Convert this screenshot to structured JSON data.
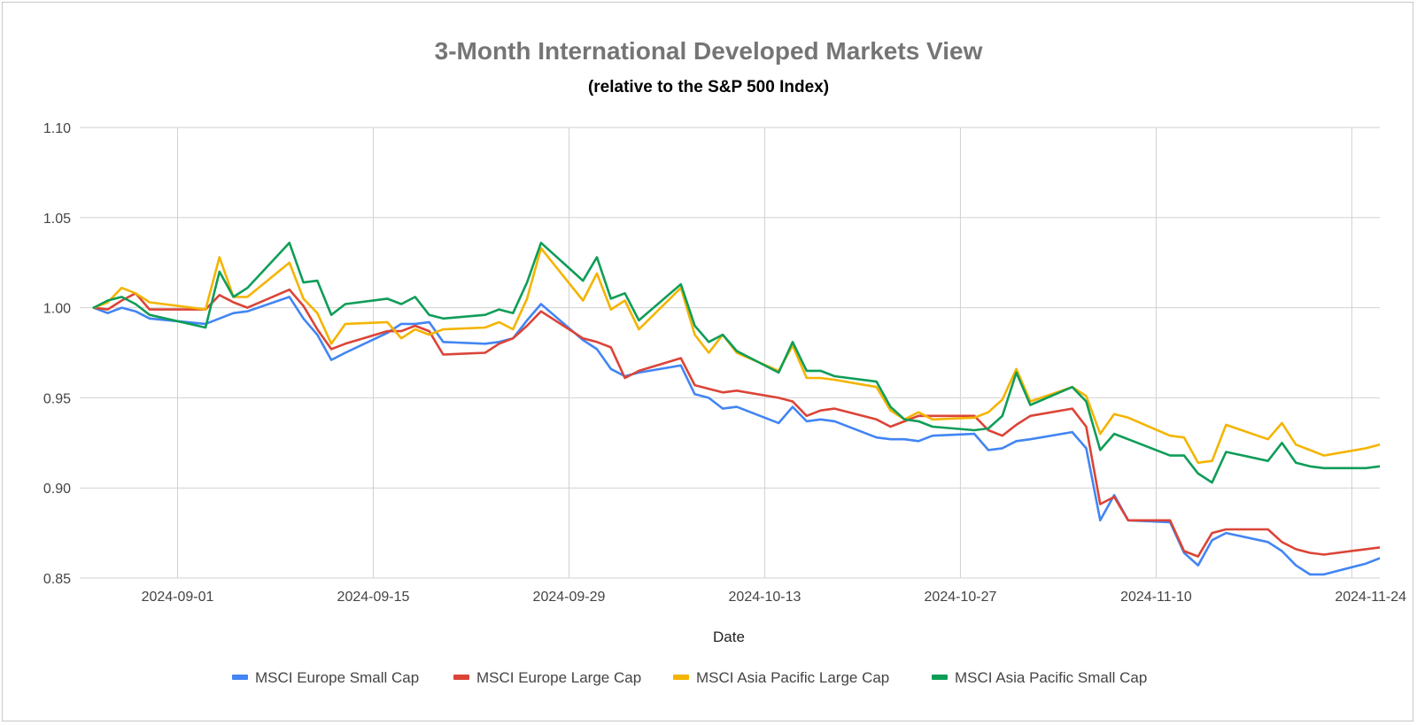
{
  "chart_data": {
    "type": "line",
    "title": "3-Month International Developed Markets View",
    "subtitle": "(relative to the S&P 500 Index)",
    "xlabel": "Date",
    "ylabel": "",
    "xlim": [
      "2024-08-25",
      "2024-11-26"
    ],
    "ylim": [
      0.85,
      1.1
    ],
    "yticks": [
      "0.85",
      "0.90",
      "0.95",
      "1.00",
      "1.05",
      "1.10"
    ],
    "xticks": [
      "2024-09-01",
      "2024-09-15",
      "2024-09-29",
      "2024-10-13",
      "2024-10-27",
      "2024-11-10",
      "2024-11-24"
    ],
    "grid": true,
    "legend_position": "bottom",
    "series": [
      {
        "name": "MSCI Europe Small Cap",
        "color": "#4285f4",
        "x": [
          "2024-08-26",
          "2024-08-27",
          "2024-08-28",
          "2024-08-29",
          "2024-08-30",
          "2024-09-03",
          "2024-09-04",
          "2024-09-05",
          "2024-09-06",
          "2024-09-09",
          "2024-09-10",
          "2024-09-11",
          "2024-09-12",
          "2024-09-13",
          "2024-09-16",
          "2024-09-17",
          "2024-09-18",
          "2024-09-19",
          "2024-09-20",
          "2024-09-23",
          "2024-09-24",
          "2024-09-25",
          "2024-09-26",
          "2024-09-27",
          "2024-09-30",
          "2024-10-01",
          "2024-10-02",
          "2024-10-03",
          "2024-10-04",
          "2024-10-07",
          "2024-10-08",
          "2024-10-09",
          "2024-10-10",
          "2024-10-11",
          "2024-10-14",
          "2024-10-15",
          "2024-10-16",
          "2024-10-17",
          "2024-10-18",
          "2024-10-21",
          "2024-10-22",
          "2024-10-23",
          "2024-10-24",
          "2024-10-25",
          "2024-10-28",
          "2024-10-29",
          "2024-10-30",
          "2024-10-31",
          "2024-11-01",
          "2024-11-04",
          "2024-11-05",
          "2024-11-06",
          "2024-11-07",
          "2024-11-08",
          "2024-11-11",
          "2024-11-12",
          "2024-11-13",
          "2024-11-14",
          "2024-11-15",
          "2024-11-18",
          "2024-11-19",
          "2024-11-20",
          "2024-11-21",
          "2024-11-22",
          "2024-11-25",
          "2024-11-26"
        ],
        "y": [
          1.0,
          0.997,
          1.0,
          0.998,
          0.994,
          0.991,
          0.994,
          0.997,
          0.998,
          1.006,
          0.994,
          0.985,
          0.971,
          0.975,
          0.986,
          0.991,
          0.991,
          0.992,
          0.981,
          0.98,
          0.981,
          0.983,
          0.993,
          1.002,
          0.982,
          0.977,
          0.966,
          0.962,
          0.964,
          0.968,
          0.952,
          0.95,
          0.944,
          0.945,
          0.936,
          0.945,
          0.937,
          0.938,
          0.937,
          0.928,
          0.927,
          0.927,
          0.926,
          0.929,
          0.93,
          0.921,
          0.922,
          0.926,
          0.927,
          0.931,
          0.922,
          0.882,
          0.896,
          0.882,
          0.881,
          0.864,
          0.857,
          0.871,
          0.875,
          0.87,
          0.865,
          0.857,
          0.852,
          0.852,
          0.858,
          0.861
        ]
      },
      {
        "name": "MSCI Europe Large Cap",
        "color": "#db4437",
        "x": [
          "2024-08-26",
          "2024-08-27",
          "2024-08-28",
          "2024-08-29",
          "2024-08-30",
          "2024-09-03",
          "2024-09-04",
          "2024-09-05",
          "2024-09-06",
          "2024-09-09",
          "2024-09-10",
          "2024-09-11",
          "2024-09-12",
          "2024-09-13",
          "2024-09-16",
          "2024-09-17",
          "2024-09-18",
          "2024-09-19",
          "2024-09-20",
          "2024-09-23",
          "2024-09-24",
          "2024-09-25",
          "2024-09-26",
          "2024-09-27",
          "2024-09-30",
          "2024-10-01",
          "2024-10-02",
          "2024-10-03",
          "2024-10-04",
          "2024-10-07",
          "2024-10-08",
          "2024-10-09",
          "2024-10-10",
          "2024-10-11",
          "2024-10-14",
          "2024-10-15",
          "2024-10-16",
          "2024-10-17",
          "2024-10-18",
          "2024-10-21",
          "2024-10-22",
          "2024-10-23",
          "2024-10-24",
          "2024-10-25",
          "2024-10-28",
          "2024-10-29",
          "2024-10-30",
          "2024-10-31",
          "2024-11-01",
          "2024-11-04",
          "2024-11-05",
          "2024-11-06",
          "2024-11-07",
          "2024-11-08",
          "2024-11-11",
          "2024-11-12",
          "2024-11-13",
          "2024-11-14",
          "2024-11-15",
          "2024-11-18",
          "2024-11-19",
          "2024-11-20",
          "2024-11-21",
          "2024-11-22",
          "2024-11-25",
          "2024-11-26"
        ],
        "y": [
          1.0,
          0.999,
          1.004,
          1.008,
          0.999,
          0.999,
          1.007,
          1.003,
          1.0,
          1.01,
          1.001,
          0.988,
          0.977,
          0.98,
          0.987,
          0.987,
          0.99,
          0.987,
          0.974,
          0.975,
          0.98,
          0.983,
          0.99,
          0.998,
          0.983,
          0.981,
          0.978,
          0.961,
          0.965,
          0.972,
          0.957,
          0.955,
          0.953,
          0.954,
          0.95,
          0.948,
          0.94,
          0.943,
          0.944,
          0.938,
          0.934,
          0.937,
          0.94,
          0.94,
          0.94,
          0.932,
          0.929,
          0.935,
          0.94,
          0.944,
          0.934,
          0.891,
          0.895,
          0.882,
          0.882,
          0.865,
          0.862,
          0.875,
          0.877,
          0.877,
          0.87,
          0.866,
          0.864,
          0.863,
          0.866,
          0.867
        ]
      },
      {
        "name": "MSCI Asia Pacific Large Cap",
        "color": "#f4b400",
        "x": [
          "2024-08-26",
          "2024-08-27",
          "2024-08-28",
          "2024-08-29",
          "2024-08-30",
          "2024-09-03",
          "2024-09-04",
          "2024-09-05",
          "2024-09-06",
          "2024-09-09",
          "2024-09-10",
          "2024-09-11",
          "2024-09-12",
          "2024-09-13",
          "2024-09-16",
          "2024-09-17",
          "2024-09-18",
          "2024-09-19",
          "2024-09-20",
          "2024-09-23",
          "2024-09-24",
          "2024-09-25",
          "2024-09-26",
          "2024-09-27",
          "2024-09-30",
          "2024-10-01",
          "2024-10-02",
          "2024-10-03",
          "2024-10-04",
          "2024-10-07",
          "2024-10-08",
          "2024-10-09",
          "2024-10-10",
          "2024-10-11",
          "2024-10-14",
          "2024-10-15",
          "2024-10-16",
          "2024-10-17",
          "2024-10-18",
          "2024-10-21",
          "2024-10-22",
          "2024-10-23",
          "2024-10-24",
          "2024-10-25",
          "2024-10-28",
          "2024-10-29",
          "2024-10-30",
          "2024-10-31",
          "2024-11-01",
          "2024-11-04",
          "2024-11-05",
          "2024-11-06",
          "2024-11-07",
          "2024-11-08",
          "2024-11-11",
          "2024-11-12",
          "2024-11-13",
          "2024-11-14",
          "2024-11-15",
          "2024-11-18",
          "2024-11-19",
          "2024-11-20",
          "2024-11-21",
          "2024-11-22",
          "2024-11-25",
          "2024-11-26"
        ],
        "y": [
          1.0,
          1.003,
          1.011,
          1.008,
          1.003,
          0.999,
          1.028,
          1.006,
          1.006,
          1.025,
          1.005,
          0.997,
          0.98,
          0.991,
          0.992,
          0.983,
          0.988,
          0.985,
          0.988,
          0.989,
          0.992,
          0.988,
          1.005,
          1.033,
          1.004,
          1.019,
          0.999,
          1.004,
          0.988,
          1.011,
          0.985,
          0.975,
          0.985,
          0.975,
          0.965,
          0.979,
          0.961,
          0.961,
          0.96,
          0.956,
          0.943,
          0.938,
          0.942,
          0.938,
          0.939,
          0.942,
          0.949,
          0.966,
          0.948,
          0.956,
          0.951,
          0.93,
          0.941,
          0.939,
          0.929,
          0.928,
          0.914,
          0.915,
          0.935,
          0.927,
          0.936,
          0.924,
          0.921,
          0.918,
          0.922,
          0.924
        ]
      },
      {
        "name": "MSCI Asia Pacific Small Cap",
        "color": "#0f9d58",
        "x": [
          "2024-08-26",
          "2024-08-27",
          "2024-08-28",
          "2024-08-29",
          "2024-08-30",
          "2024-09-03",
          "2024-09-04",
          "2024-09-05",
          "2024-09-06",
          "2024-09-09",
          "2024-09-10",
          "2024-09-11",
          "2024-09-12",
          "2024-09-13",
          "2024-09-16",
          "2024-09-17",
          "2024-09-18",
          "2024-09-19",
          "2024-09-20",
          "2024-09-23",
          "2024-09-24",
          "2024-09-25",
          "2024-09-26",
          "2024-09-27",
          "2024-09-30",
          "2024-10-01",
          "2024-10-02",
          "2024-10-03",
          "2024-10-04",
          "2024-10-07",
          "2024-10-08",
          "2024-10-09",
          "2024-10-10",
          "2024-10-11",
          "2024-10-14",
          "2024-10-15",
          "2024-10-16",
          "2024-10-17",
          "2024-10-18",
          "2024-10-21",
          "2024-10-22",
          "2024-10-23",
          "2024-10-24",
          "2024-10-25",
          "2024-10-28",
          "2024-10-29",
          "2024-10-30",
          "2024-10-31",
          "2024-11-01",
          "2024-11-04",
          "2024-11-05",
          "2024-11-06",
          "2024-11-07",
          "2024-11-08",
          "2024-11-11",
          "2024-11-12",
          "2024-11-13",
          "2024-11-14",
          "2024-11-15",
          "2024-11-18",
          "2024-11-19",
          "2024-11-20",
          "2024-11-21",
          "2024-11-22",
          "2024-11-25",
          "2024-11-26"
        ],
        "y": [
          1.0,
          1.004,
          1.006,
          1.002,
          0.996,
          0.989,
          1.02,
          1.006,
          1.011,
          1.036,
          1.014,
          1.015,
          0.996,
          1.002,
          1.005,
          1.002,
          1.006,
          0.996,
          0.994,
          0.996,
          0.999,
          0.997,
          1.014,
          1.036,
          1.015,
          1.028,
          1.005,
          1.008,
          0.993,
          1.013,
          0.99,
          0.981,
          0.985,
          0.976,
          0.964,
          0.981,
          0.965,
          0.965,
          0.962,
          0.959,
          0.945,
          0.938,
          0.937,
          0.934,
          0.932,
          0.933,
          0.94,
          0.964,
          0.946,
          0.956,
          0.948,
          0.921,
          0.93,
          0.927,
          0.918,
          0.918,
          0.908,
          0.903,
          0.92,
          0.915,
          0.925,
          0.914,
          0.912,
          0.911,
          0.911,
          0.912
        ]
      }
    ]
  }
}
